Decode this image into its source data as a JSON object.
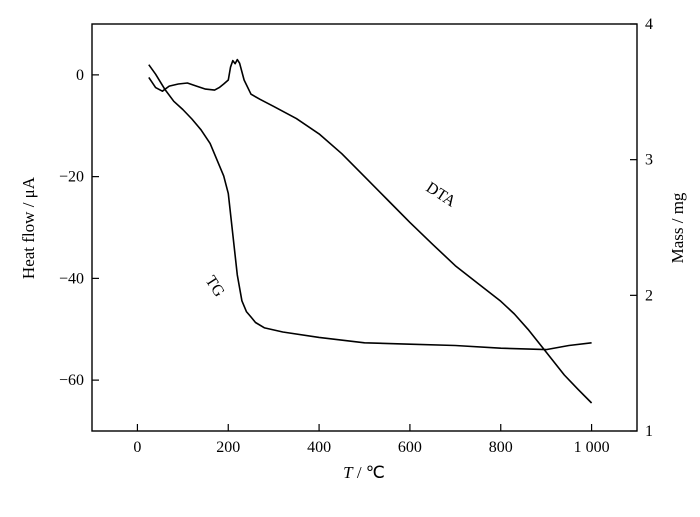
{
  "chart_data": {
    "type": "line",
    "title": "",
    "xlabel_italic": "T",
    "xlabel_rest": " / ℃",
    "ylabel_left": "Heat flow / μA",
    "ylabel_right": "Mass / mg",
    "xlim": [
      -100,
      1100
    ],
    "ylim_left": [
      -70,
      10
    ],
    "ylim_right": [
      1,
      4
    ],
    "x_ticks": [
      0,
      200,
      400,
      600,
      800,
      1000
    ],
    "x_tick_labels": [
      "0",
      "200",
      "400",
      "600",
      "800",
      "1 000"
    ],
    "y_left_ticks": [
      0,
      -20,
      -40,
      -60
    ],
    "y_left_tick_labels": [
      "0",
      "−20",
      "−40",
      "−60"
    ],
    "y_right_ticks": [
      1,
      2,
      3,
      4
    ],
    "y_right_tick_labels": [
      "1",
      "2",
      "3",
      "4"
    ],
    "grid": false,
    "series": [
      {
        "name": "DTA",
        "axis": "left",
        "x": [
          25,
          40,
          55,
          70,
          90,
          110,
          130,
          150,
          170,
          180,
          190,
          200,
          205,
          210,
          215,
          220,
          225,
          235,
          250,
          270,
          300,
          350,
          400,
          450,
          500,
          550,
          600,
          650,
          700,
          750,
          800,
          830,
          860,
          900,
          940,
          970,
          1000
        ],
        "y": [
          -0.5,
          -2.5,
          -3.2,
          -2.2,
          -1.8,
          -1.6,
          -2.2,
          -2.8,
          -3.0,
          -2.5,
          -1.8,
          -1.0,
          1.5,
          2.8,
          2.2,
          3.0,
          2.3,
          -1.0,
          -3.8,
          -4.8,
          -6.2,
          -8.6,
          -11.6,
          -15.5,
          -20.0,
          -24.5,
          -29.0,
          -33.3,
          -37.5,
          -41.0,
          -44.5,
          -47.0,
          -50.0,
          -54.5,
          -59.0,
          -61.8,
          -64.5
        ]
      },
      {
        "name": "TG",
        "axis": "right",
        "x": [
          25,
          40,
          60,
          80,
          100,
          120,
          140,
          160,
          175,
          190,
          200,
          210,
          220,
          230,
          240,
          250,
          260,
          280,
          320,
          400,
          500,
          600,
          700,
          800,
          900,
          950,
          1000
        ],
        "y": [
          3.7,
          3.63,
          3.52,
          3.43,
          3.37,
          3.3,
          3.22,
          3.12,
          3.0,
          2.88,
          2.75,
          2.45,
          2.15,
          1.96,
          1.88,
          1.84,
          1.8,
          1.76,
          1.73,
          1.69,
          1.65,
          1.64,
          1.63,
          1.61,
          1.6,
          1.63,
          1.65
        ]
      }
    ]
  }
}
